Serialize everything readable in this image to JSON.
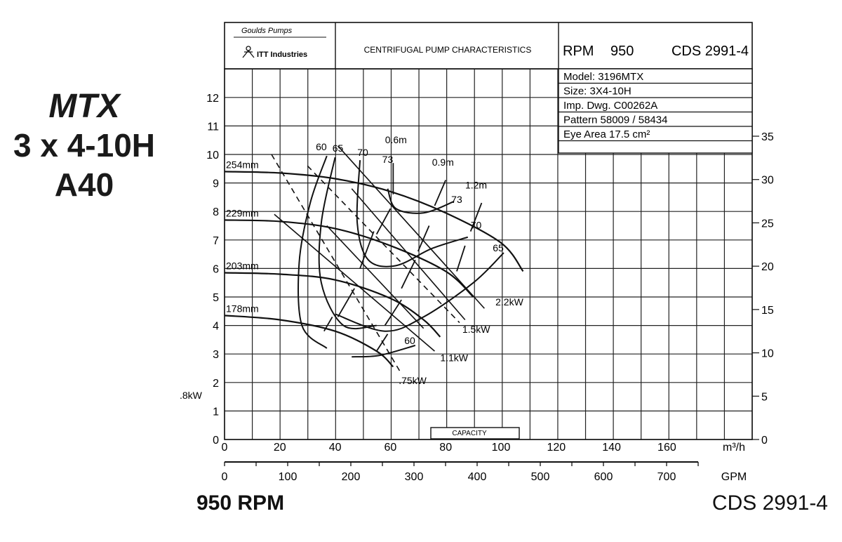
{
  "side_title": {
    "line1": "MTX",
    "line2": "3 x 4-10H",
    "line3": "A40"
  },
  "footer": {
    "rpm": "950 RPM",
    "cds": "CDS 2991-4"
  },
  "header": {
    "brand_line1": "Goulds Pumps",
    "brand_line2": "ITT Industries",
    "title": "CENTRIFUGAL PUMP CHARACTERISTICS",
    "rpm_label": "RPM",
    "rpm_value": "950",
    "cds": "CDS 2991-4"
  },
  "info_rows": [
    "Model: 3196MTX",
    "Size: 3X4-10H",
    "Imp. Dwg. C00262A",
    "Pattern 58009 / 58434",
    "Eye Area   17.5  cm²"
  ],
  "capacity_label": "CAPACITY",
  "left_power_label": ".8kW",
  "chart_data": {
    "type": "line",
    "x_axis_m3h": {
      "label": "m³/h",
      "range": [
        0,
        140
      ],
      "ticks": [
        "0",
        "20",
        "40",
        "60",
        "80",
        "100",
        "120",
        "140",
        "160"
      ]
    },
    "x_axis_gpm": {
      "label": "GPM",
      "range": [
        0,
        750
      ],
      "ticks": [
        "0",
        "100",
        "200",
        "300",
        "400",
        "500",
        "600",
        "700"
      ]
    },
    "y_axis_left": {
      "range": [
        0,
        12.7
      ],
      "ticks": [
        "0",
        "1",
        "2",
        "3",
        "4",
        "5",
        "6",
        "7",
        "8",
        "9",
        "10",
        "11",
        "12"
      ]
    },
    "y_axis_right": {
      "range": [
        0,
        37
      ],
      "ticks": [
        "0",
        "5",
        "10",
        "15",
        "20",
        "25",
        "30",
        "35"
      ]
    },
    "grid": true,
    "impeller_curves": [
      {
        "name": "254mm",
        "points": [
          [
            0,
            9.4
          ],
          [
            20,
            9.35
          ],
          [
            40,
            9.15
          ],
          [
            60,
            8.7
          ],
          [
            80,
            7.95
          ],
          [
            100,
            6.9
          ],
          [
            108,
            5.9
          ]
        ]
      },
      {
        "name": "229mm",
        "points": [
          [
            0,
            7.7
          ],
          [
            20,
            7.65
          ],
          [
            40,
            7.4
          ],
          [
            60,
            6.8
          ],
          [
            80,
            5.9
          ],
          [
            90,
            5.0
          ]
        ]
      },
      {
        "name": "203mm",
        "points": [
          [
            0,
            5.85
          ],
          [
            20,
            5.8
          ],
          [
            40,
            5.6
          ],
          [
            60,
            4.95
          ],
          [
            72,
            4.2
          ],
          [
            78,
            3.6
          ]
        ]
      },
      {
        "name": "178mm",
        "points": [
          [
            0,
            4.35
          ],
          [
            20,
            4.2
          ],
          [
            40,
            3.8
          ],
          [
            55,
            3.1
          ],
          [
            61,
            2.55
          ]
        ]
      }
    ],
    "efficiency_curves": [
      {
        "name": "60",
        "points": [
          [
            37,
            9.95
          ],
          [
            31,
            8.3
          ],
          [
            27,
            6.2
          ],
          [
            28,
            4.0
          ],
          [
            37,
            3.2
          ]
        ]
      },
      {
        "name": "65",
        "points": [
          [
            40,
            9.9
          ],
          [
            35,
            7.6
          ],
          [
            35,
            5.5
          ],
          [
            43,
            4.0
          ],
          [
            55,
            4.0
          ]
        ]
      },
      {
        "name": "70",
        "points": [
          [
            49,
            9.8
          ],
          [
            48,
            7.6
          ],
          [
            52,
            6.3
          ],
          [
            62,
            6.1
          ],
          [
            75,
            6.7
          ],
          [
            88,
            7.1
          ]
        ]
      },
      {
        "name": "73",
        "points": [
          [
            59,
            8.8
          ],
          [
            62,
            8.1
          ],
          [
            72,
            7.95
          ],
          [
            83,
            8.35
          ]
        ]
      },
      {
        "name": "65",
        "points": [
          [
            40,
            4.4
          ],
          [
            58,
            3.8
          ],
          [
            72,
            4.3
          ],
          [
            90,
            5.5
          ],
          [
            101,
            6.55
          ]
        ]
      },
      {
        "name": "60",
        "points": [
          [
            46,
            2.9
          ],
          [
            56,
            2.95
          ],
          [
            69,
            3.3
          ]
        ]
      }
    ],
    "efficiency_labels": [
      {
        "text": "60",
        "x": 35,
        "y": 10.15
      },
      {
        "text": "65",
        "x": 41,
        "y": 10.1
      },
      {
        "text": "70",
        "x": 50,
        "y": 9.95
      },
      {
        "text": "73",
        "x": 59,
        "y": 9.7
      },
      {
        "text": "73",
        "x": 84,
        "y": 8.3
      },
      {
        "text": "70",
        "x": 91,
        "y": 7.4
      },
      {
        "text": "65",
        "x": 99,
        "y": 6.6
      },
      {
        "text": "60",
        "x": 67,
        "y": 3.35
      }
    ],
    "npsh_lines": [
      {
        "name": "0.6m",
        "points": [
          [
            61,
            9.7
          ],
          [
            61,
            8.6
          ]
        ],
        "label_pos": [
          62,
          10.4
        ]
      },
      {
        "name": "0.9m",
        "points": [
          [
            80,
            9.1
          ],
          [
            76,
            8.2
          ]
        ],
        "label_pos": [
          79,
          9.6
        ]
      },
      {
        "name": "1.2m",
        "points": [
          [
            93,
            8.3
          ],
          [
            89,
            7.3
          ]
        ],
        "label_pos": [
          91,
          8.8
        ]
      },
      {
        "name": "",
        "points": [
          [
            60,
            8.1
          ],
          [
            55,
            7.2
          ]
        ]
      },
      {
        "name": "",
        "points": [
          [
            54,
            7.3
          ],
          [
            49,
            6.0
          ]
        ]
      },
      {
        "name": "",
        "points": [
          [
            74,
            7.5
          ],
          [
            70,
            6.6
          ]
        ]
      },
      {
        "name": "",
        "points": [
          [
            69,
            6.3
          ],
          [
            64,
            5.3
          ]
        ]
      },
      {
        "name": "",
        "points": [
          [
            87,
            6.8
          ],
          [
            84,
            5.9
          ]
        ]
      },
      {
        "name": "",
        "points": [
          [
            47,
            5.3
          ],
          [
            41,
            4.3
          ]
        ]
      },
      {
        "name": "",
        "points": [
          [
            64,
            4.9
          ],
          [
            58,
            4.0
          ]
        ]
      },
      {
        "name": "",
        "points": [
          [
            39,
            4.3
          ],
          [
            36,
            3.8
          ]
        ]
      },
      {
        "name": "",
        "points": [
          [
            59,
            3.7
          ],
          [
            55,
            3.1
          ]
        ]
      }
    ],
    "power_lines": [
      {
        "name": "2.2kW",
        "dashed": false,
        "points": [
          [
            41,
            10.3
          ],
          [
            94,
            4.6
          ]
        ],
        "label_pos": [
          98,
          4.7
        ]
      },
      {
        "name": "1.5kW",
        "dashed": true,
        "points": [
          [
            30,
            9.6
          ],
          [
            85,
            4.1
          ]
        ],
        "label_pos": [
          86,
          3.75
        ]
      },
      {
        "name": "1.1kW",
        "dashed": false,
        "points": [
          [
            18,
            7.9
          ],
          [
            76,
            3.1
          ]
        ],
        "label_pos": [
          78,
          2.75
        ]
      },
      {
        "name": ".75kW",
        "dashed": true,
        "points": [
          [
            17,
            10.0
          ],
          [
            64,
            2.3
          ]
        ],
        "label_pos": [
          63,
          1.95
        ]
      },
      {
        "name": "",
        "dashed": false,
        "points": [
          [
            46,
            8.8
          ],
          [
            87,
            4.2
          ]
        ]
      },
      {
        "name": "",
        "dashed": false,
        "points": [
          [
            37,
            7.5
          ],
          [
            72,
            3.9
          ]
        ]
      }
    ]
  }
}
